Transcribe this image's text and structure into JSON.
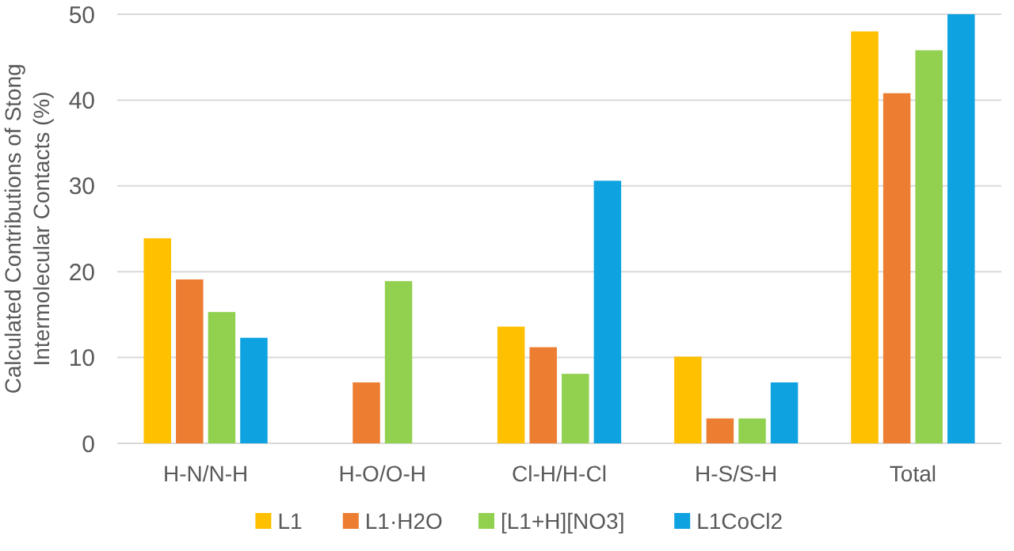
{
  "chart_data": {
    "type": "bar",
    "ylabel": "Calculated  Contributions of Stong\nIntermolecular Contacts (%)",
    "categories": [
      "H-N/N-H",
      "H-O/O-H",
      "Cl-H/H-Cl",
      "H-S/S-H",
      "Total"
    ],
    "series": [
      {
        "name": "L1",
        "color": "#ffc000",
        "values": [
          23.9,
          null,
          13.6,
          10.1,
          48.0
        ]
      },
      {
        "name": "L1·H2O",
        "color": "#ed7d31",
        "values": [
          19.1,
          7.1,
          11.2,
          2.9,
          40.8
        ]
      },
      {
        "name": "[L1+H][NO3]",
        "color": "#92d050",
        "values": [
          15.3,
          18.9,
          8.1,
          2.9,
          45.8
        ]
      },
      {
        "name": "L1CoCl2",
        "color": "#0ea2e0",
        "values": [
          12.3,
          null,
          30.6,
          7.1,
          50
        ]
      }
    ],
    "ylim": [
      0,
      50
    ],
    "yticks": [
      0,
      10,
      20,
      30,
      40,
      50
    ],
    "grid": "y",
    "legend": "bottom"
  }
}
